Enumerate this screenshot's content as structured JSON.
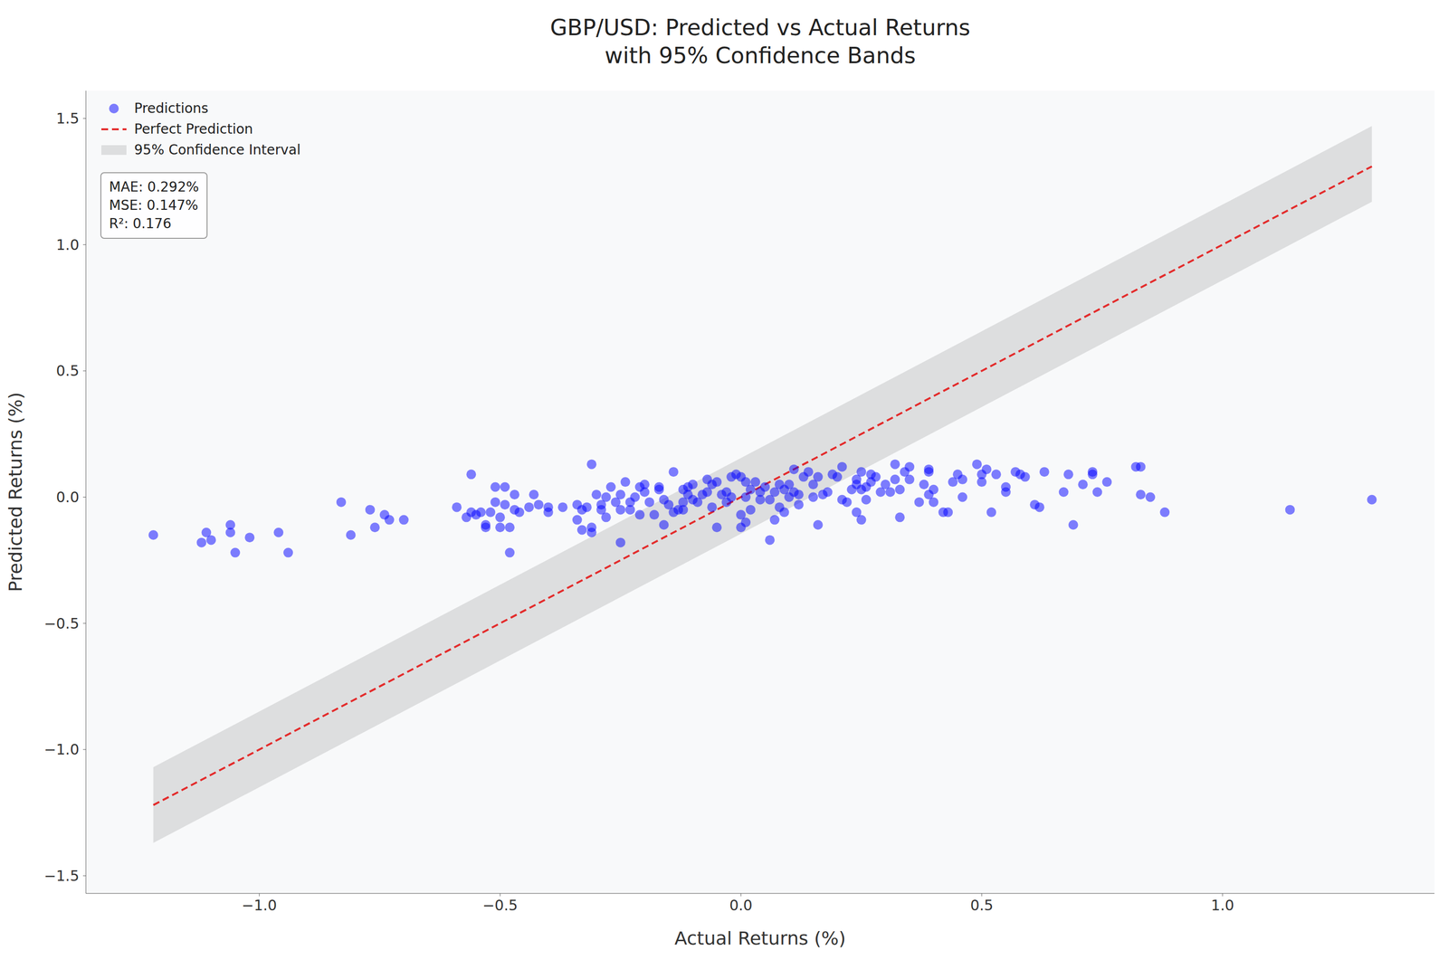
{
  "chart_data": {
    "type": "scatter",
    "title": "GBP/USD: Predicted vs Actual Returns\nwith 95% Confidence Bands",
    "x_label": "Actual Returns (%)",
    "y_label": "Predicted Returns (%)",
    "xlim": [
      -1.36,
      1.44
    ],
    "ylim": [
      -1.57,
      1.61
    ],
    "xticks": [
      {
        "value": -1.0,
        "label": "−1.0"
      },
      {
        "value": -0.5,
        "label": "−0.5"
      },
      {
        "value": 0,
        "label": "0.0"
      },
      {
        "value": 0.5,
        "label": "0.5"
      },
      {
        "value": 1.0,
        "label": "1.0"
      }
    ],
    "yticks": [
      {
        "value": -1.5,
        "label": "−1.5"
      },
      {
        "value": -1.0,
        "label": "−1.0"
      },
      {
        "value": -0.5,
        "label": "−0.5"
      },
      {
        "value": 0,
        "label": "0.0"
      },
      {
        "value": 0.5,
        "label": "0.5"
      },
      {
        "value": 1.0,
        "label": "1.0"
      },
      {
        "value": 1.5,
        "label": "1.5"
      }
    ],
    "grid": false,
    "legend": "upper left",
    "annotations": [
      "MAE: 0.292%",
      "MSE: 0.147%",
      "R²: 0.176"
    ],
    "series": [
      {
        "name": "Predictions",
        "type": "scatter",
        "color": "#0000ff",
        "marker": "circle",
        "x": [
          -1.22,
          -1.12,
          -1.11,
          -1.1,
          -1.06,
          -1.06,
          -1.05,
          -1.02,
          -0.96,
          -0.94,
          -0.83,
          -0.81,
          -0.77,
          -0.76,
          -0.74,
          -0.73,
          -0.7,
          -0.59,
          -0.57,
          -0.56,
          -0.56,
          -0.55,
          -0.54,
          -0.53,
          -0.53,
          -0.52,
          -0.51,
          -0.51,
          -0.5,
          -0.5,
          -0.49,
          -0.49,
          -0.48,
          -0.48,
          -0.47,
          -0.47,
          -0.46,
          -0.44,
          -0.43,
          -0.42,
          -0.4,
          -0.4,
          -0.37,
          -0.34,
          -0.34,
          -0.33,
          -0.33,
          -0.32,
          -0.31,
          -0.31,
          -0.31,
          -0.3,
          -0.29,
          -0.29,
          -0.28,
          -0.28,
          -0.27,
          -0.26,
          -0.25,
          -0.25,
          -0.25,
          -0.24,
          -0.23,
          -0.23,
          -0.22,
          -0.21,
          -0.21,
          -0.2,
          -0.2,
          -0.19,
          -0.18,
          -0.17,
          -0.17,
          -0.16,
          -0.16,
          -0.15,
          -0.14,
          -0.14,
          -0.13,
          -0.12,
          -0.12,
          -0.12,
          -0.11,
          -0.11,
          -0.1,
          -0.1,
          -0.09,
          -0.08,
          -0.07,
          -0.07,
          -0.06,
          -0.06,
          -0.05,
          -0.05,
          -0.04,
          -0.03,
          -0.03,
          -0.02,
          -0.02,
          -0.01,
          0.0,
          0.0,
          0.0,
          0.01,
          0.01,
          0.01,
          0.02,
          0.02,
          0.03,
          0.04,
          0.04,
          0.05,
          0.06,
          0.06,
          0.07,
          0.07,
          0.08,
          0.08,
          0.09,
          0.09,
          0.1,
          0.1,
          0.11,
          0.11,
          0.12,
          0.12,
          0.13,
          0.14,
          0.15,
          0.15,
          0.16,
          0.16,
          0.17,
          0.18,
          0.19,
          0.2,
          0.21,
          0.21,
          0.22,
          0.23,
          0.24,
          0.24,
          0.24,
          0.25,
          0.25,
          0.25,
          0.26,
          0.26,
          0.27,
          0.27,
          0.28,
          0.29,
          0.3,
          0.31,
          0.32,
          0.32,
          0.33,
          0.33,
          0.34,
          0.35,
          0.35,
          0.37,
          0.38,
          0.39,
          0.39,
          0.39,
          0.4,
          0.4,
          0.42,
          0.43,
          0.44,
          0.45,
          0.46,
          0.46,
          0.49,
          0.5,
          0.5,
          0.51,
          0.52,
          0.53,
          0.55,
          0.55,
          0.57,
          0.58,
          0.59,
          0.61,
          0.62,
          0.63,
          0.67,
          0.68,
          0.69,
          0.71,
          0.73,
          0.73,
          0.74,
          0.76,
          0.82,
          0.83,
          0.83,
          0.85,
          0.88,
          1.14,
          1.31
        ],
        "values": [
          -0.15,
          -0.18,
          -0.14,
          -0.17,
          -0.11,
          -0.14,
          -0.22,
          -0.16,
          -0.14,
          -0.22,
          -0.02,
          -0.15,
          -0.05,
          -0.12,
          -0.07,
          -0.09,
          -0.09,
          -0.04,
          -0.08,
          0.09,
          -0.06,
          -0.07,
          -0.06,
          -0.11,
          -0.12,
          -0.06,
          0.04,
          -0.02,
          -0.08,
          -0.12,
          0.04,
          -0.03,
          -0.12,
          -0.22,
          0.01,
          -0.05,
          -0.06,
          -0.04,
          0.01,
          -0.03,
          -0.06,
          -0.04,
          -0.04,
          -0.09,
          -0.03,
          -0.13,
          -0.05,
          -0.04,
          -0.12,
          0.13,
          -0.14,
          0.01,
          -0.03,
          -0.05,
          -0.08,
          0.0,
          0.04,
          -0.02,
          0.01,
          -0.05,
          -0.18,
          0.06,
          -0.02,
          -0.05,
          0.0,
          0.04,
          -0.07,
          0.05,
          0.02,
          -0.02,
          -0.07,
          0.04,
          0.03,
          -0.01,
          -0.11,
          -0.03,
          -0.06,
          0.1,
          -0.05,
          0.03,
          -0.02,
          -0.05,
          0.04,
          0.01,
          -0.01,
          0.05,
          -0.02,
          0.01,
          0.07,
          0.02,
          -0.04,
          0.05,
          0.06,
          -0.12,
          0.01,
          0.02,
          -0.02,
          0.08,
          0.0,
          0.09,
          0.08,
          -0.07,
          -0.12,
          -0.1,
          0.06,
          0.0,
          -0.05,
          0.03,
          0.06,
          -0.01,
          0.02,
          0.04,
          -0.01,
          -0.17,
          0.02,
          -0.09,
          -0.04,
          0.05,
          0.03,
          -0.06,
          0.0,
          0.05,
          0.02,
          0.11,
          -0.03,
          0.01,
          0.08,
          0.1,
          0.05,
          0.0,
          0.08,
          -0.11,
          0.01,
          0.02,
          0.09,
          0.08,
          0.12,
          -0.01,
          -0.02,
          0.03,
          0.07,
          0.05,
          -0.06,
          -0.09,
          0.03,
          0.1,
          -0.01,
          0.04,
          0.09,
          0.06,
          0.08,
          0.02,
          0.05,
          0.02,
          0.07,
          0.13,
          -0.08,
          0.03,
          0.1,
          0.12,
          0.07,
          -0.02,
          0.05,
          0.1,
          0.11,
          0.01,
          -0.02,
          0.03,
          -0.06,
          -0.06,
          0.06,
          0.09,
          0.07,
          0.0,
          0.13,
          0.06,
          0.09,
          0.11,
          -0.06,
          0.09,
          0.04,
          0.02,
          0.1,
          0.09,
          0.08,
          -0.03,
          -0.04,
          0.1,
          0.02,
          0.09,
          -0.11,
          0.05,
          0.1,
          0.09,
          0.02,
          0.06,
          0.12,
          0.12,
          0.01,
          0.0,
          -0.06,
          -0.05,
          -0.01
        ]
      },
      {
        "name": "Perfect Prediction",
        "type": "line",
        "color": "#e32b2b",
        "line_style": "dashed",
        "x": [
          -1.22,
          1.31
        ],
        "values": [
          -1.22,
          1.31
        ]
      },
      {
        "name": "95% Confidence Interval",
        "type": "band",
        "color": "#808080",
        "x": [
          -1.22,
          1.31
        ],
        "lower": [
          -1.37,
          1.17
        ],
        "upper": [
          -1.07,
          1.47
        ]
      }
    ]
  }
}
